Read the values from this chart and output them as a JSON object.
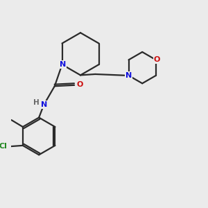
{
  "bg_color": "#ebebeb",
  "bond_color": "#2a2a2a",
  "N_color": "#1010dd",
  "O_color": "#cc1010",
  "Cl_color": "#228822",
  "H_color": "#666666",
  "lw": 1.6,
  "fs": 8.0,
  "dpi": 100,
  "figsize": [
    3.0,
    3.0
  ],
  "xlim": [
    0,
    10
  ],
  "ylim": [
    0,
    10
  ]
}
